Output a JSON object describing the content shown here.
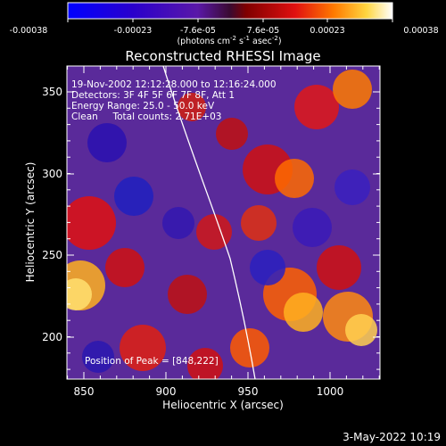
{
  "colorbar": {
    "ticks": [
      "-0.00038",
      "-0.00023",
      "-7.6e-05",
      "7.6e-05",
      "0.00023",
      "0.00038"
    ],
    "unit_main": "(photons cm",
    "unit_exp1": "-2",
    "unit_s": " s",
    "unit_exp2": "-1",
    "unit_asec": " asec",
    "unit_exp3": "-2",
    "unit_close": ")"
  },
  "plot": {
    "title": "Reconstructed RHESSI Image",
    "xlabel": "Heliocentric X (arcsec)",
    "ylabel": "Heliocentric Y (arcsec)",
    "xticks": [
      "850",
      "900",
      "950",
      "1000"
    ],
    "yticks": [
      "350",
      "300",
      "250",
      "200"
    ],
    "xrange": [
      840,
      1030
    ],
    "yrange": [
      172,
      370
    ],
    "info": [
      "19-Nov-2002 12:12:28.000 to 12:16:24.000",
      "Detectors: 3F 4F 5F 6F 7F 8F, Att 1",
      "Energy Range: 25.0 - 50.0 keV",
      "Clean     Total counts: 2.71E+03"
    ],
    "peak": "Position of Peak = [848,222]"
  },
  "footer": {
    "date": "3-May-2022 10:19"
  },
  "colors": {
    "background": "#000000",
    "text": "#ffffff"
  }
}
